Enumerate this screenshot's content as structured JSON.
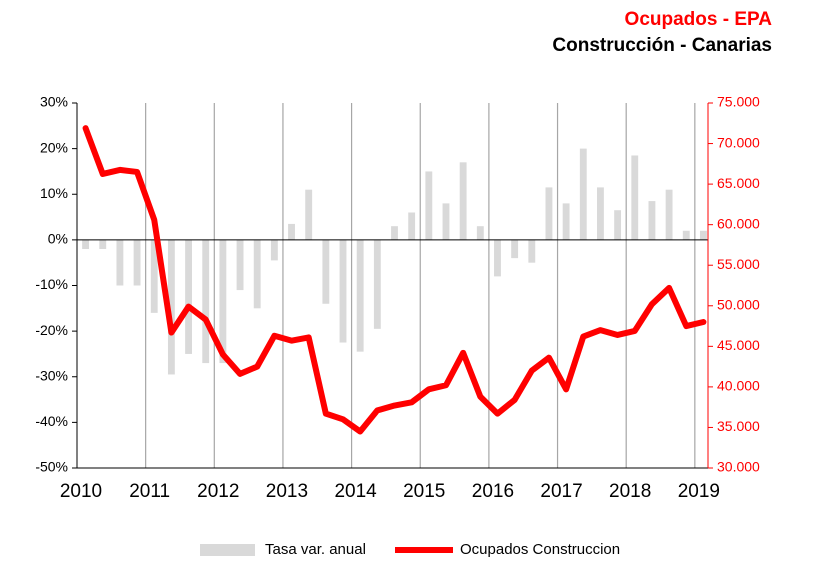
{
  "chart_data": {
    "type": "combo",
    "title": "Ocupados - EPA",
    "subtitle": "Construcción - Canarias",
    "x": [
      2010.125,
      2010.375,
      2010.625,
      2010.875,
      2011.125,
      2011.375,
      2011.625,
      2011.875,
      2012.125,
      2012.375,
      2012.625,
      2012.875,
      2013.125,
      2013.375,
      2013.625,
      2013.875,
      2014.125,
      2014.375,
      2014.625,
      2014.875,
      2015.125,
      2015.375,
      2015.625,
      2015.875,
      2016.125,
      2016.375,
      2016.625,
      2016.875,
      2017.125,
      2017.375,
      2017.625,
      2017.875,
      2018.125,
      2018.375,
      2018.625,
      2018.875,
      2019.125
    ],
    "xlim": [
      2010,
      2019.25
    ],
    "xticks": [
      2010,
      2011,
      2012,
      2013,
      2014,
      2015,
      2016,
      2017,
      2018,
      2019
    ],
    "series": [
      {
        "name": "Tasa var. anual",
        "type": "bar",
        "axis": "y",
        "color": "#d9d9d9",
        "values": [
          -2,
          -2,
          -10,
          -10,
          -16,
          -29.5,
          -25,
          -27,
          -27,
          -11,
          -15,
          -4.5,
          3.5,
          11,
          -14,
          -22.5,
          -24.5,
          -19.5,
          3,
          6,
          15,
          8,
          17,
          3,
          -8,
          -4,
          -5,
          11.5,
          8,
          20,
          11.5,
          6.5,
          18.5,
          8.5,
          11,
          2,
          2
        ]
      },
      {
        "name": "Ocupados Construccion",
        "type": "line",
        "axis": "y2",
        "color": "#ff0000",
        "values": [
          71900,
          66250,
          66750,
          66500,
          60600,
          46700,
          49900,
          48300,
          44000,
          41600,
          42500,
          46300,
          45700,
          46100,
          36700,
          36000,
          34500,
          37100,
          37700,
          38100,
          39700,
          40200,
          44200,
          38800,
          36700,
          38400,
          42000,
          43600,
          39700,
          46200,
          47000,
          46400,
          46900,
          50200,
          52200,
          47500,
          48000
        ]
      }
    ],
    "ylim": [
      -50,
      30
    ],
    "yticks": [
      {
        "value": -50,
        "label": "-50%"
      },
      {
        "value": -40,
        "label": "-40%"
      },
      {
        "value": -30,
        "label": "-30%"
      },
      {
        "value": -20,
        "label": "-20%"
      },
      {
        "value": -10,
        "label": "-10%"
      },
      {
        "value": 0,
        "label": "0%"
      },
      {
        "value": 10,
        "label": "10%"
      },
      {
        "value": 20,
        "label": "20%"
      },
      {
        "value": 30,
        "label": "30%"
      }
    ],
    "y2lim": [
      30000,
      75000
    ],
    "y2ticks": [
      {
        "value": 30000,
        "label": "30.000"
      },
      {
        "value": 35000,
        "label": "35.000"
      },
      {
        "value": 40000,
        "label": "40.000"
      },
      {
        "value": 45000,
        "label": "45.000"
      },
      {
        "value": 50000,
        "label": "50.000"
      },
      {
        "value": 55000,
        "label": "55.000"
      },
      {
        "value": 60000,
        "label": "60.000"
      },
      {
        "value": 65000,
        "label": "65.000"
      },
      {
        "value": 70000,
        "label": "70.000"
      },
      {
        "value": 75000,
        "label": "75.000"
      }
    ],
    "y2color": "#ff0000",
    "grid": true
  }
}
